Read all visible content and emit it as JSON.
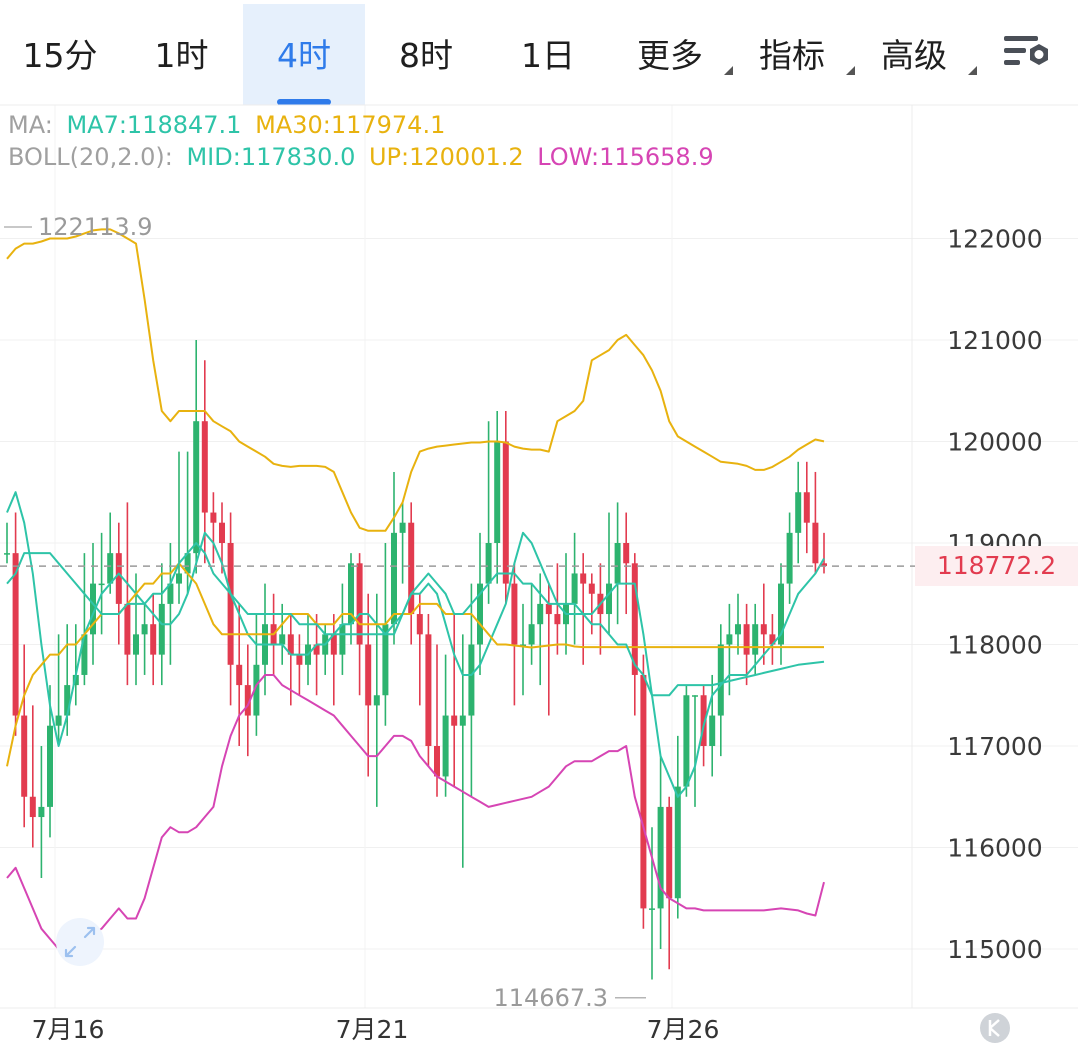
{
  "tabs": [
    {
      "label": "15分",
      "active": false,
      "dropdown": false
    },
    {
      "label": "1时",
      "active": false,
      "dropdown": false
    },
    {
      "label": "4时",
      "active": true,
      "dropdown": false
    },
    {
      "label": "8时",
      "active": false,
      "dropdown": false
    },
    {
      "label": "1日",
      "active": false,
      "dropdown": false
    },
    {
      "label": "更多",
      "active": false,
      "dropdown": true
    },
    {
      "label": "指标",
      "active": false,
      "dropdown": true
    },
    {
      "label": "高级",
      "active": false,
      "dropdown": true
    }
  ],
  "settings_icon": "chart-settings-icon",
  "legend": {
    "ma_prefix": "MA:",
    "ma7": "MA7:118847.1",
    "ma30": "MA30:117974.1",
    "boll_prefix": "BOLL(20,2.0):",
    "mid": "MID:117830.0",
    "up": "UP:120001.2",
    "low": "LOW:115658.9"
  },
  "current_price_label": "118772.2",
  "colors": {
    "up": "#2db36f",
    "down": "#e23b4f",
    "ma7": "#2ec4a8",
    "ma30": "#e8b20f",
    "boll_up": "#e8b20f",
    "boll_mid": "#2ec4a8",
    "boll_low": "#d645b4",
    "active_tab": "#2f7bea"
  },
  "chart_data": {
    "type": "candlestick",
    "interval": "4时",
    "y_ticks": [
      115000,
      116000,
      117000,
      118000,
      119000,
      120000,
      121000,
      122000
    ],
    "x_ticks": [
      "7月16",
      "7月21",
      "7月26"
    ],
    "max_label": "122113.9",
    "min_label": "114667.3",
    "current_price": 118772.2,
    "grid": true,
    "candles": [
      [
        118900,
        118900,
        119200,
        118800
      ],
      [
        118900,
        117300,
        119300,
        117100
      ],
      [
        117300,
        116500,
        118000,
        116200
      ],
      [
        116500,
        116300,
        117400,
        116000
      ],
      [
        116300,
        116400,
        117000,
        115700
      ],
      [
        116400,
        117200,
        117600,
        116100
      ],
      [
        117200,
        117300,
        118100,
        117000
      ],
      [
        117300,
        117600,
        118200,
        117100
      ],
      [
        117600,
        117700,
        118200,
        117400
      ],
      [
        117700,
        118100,
        118900,
        117600
      ],
      [
        118100,
        118600,
        119000,
        117800
      ],
      [
        118600,
        118600,
        119100,
        118100
      ],
      [
        118600,
        118900,
        119300,
        118500
      ],
      [
        118900,
        118400,
        119200,
        118000
      ],
      [
        118400,
        117900,
        119400,
        117600
      ],
      [
        117900,
        118100,
        118700,
        117600
      ],
      [
        118100,
        118200,
        118400,
        117700
      ],
      [
        118200,
        117900,
        118500,
        117600
      ],
      [
        117900,
        118400,
        118800,
        117600
      ],
      [
        118400,
        118600,
        119000,
        117800
      ],
      [
        118600,
        118700,
        119900,
        118400
      ],
      [
        118700,
        118900,
        119900,
        118500
      ],
      [
        118900,
        120200,
        121000,
        118700
      ],
      [
        120200,
        119300,
        120800,
        118800
      ],
      [
        119300,
        119200,
        119500,
        118800
      ],
      [
        119200,
        119000,
        119400,
        118700
      ],
      [
        119000,
        117800,
        119300,
        117400
      ],
      [
        117800,
        117600,
        118400,
        117000
      ],
      [
        117600,
        117300,
        118000,
        116900
      ],
      [
        117300,
        117800,
        118300,
        117100
      ],
      [
        117800,
        118200,
        118600,
        117500
      ],
      [
        118200,
        118000,
        118500,
        117700
      ],
      [
        118000,
        118100,
        118400,
        117800
      ],
      [
        118100,
        117900,
        118300,
        117400
      ],
      [
        117900,
        117800,
        118100,
        117500
      ],
      [
        117800,
        118000,
        118300,
        117600
      ],
      [
        118000,
        117900,
        118300,
        117500
      ],
      [
        117900,
        118100,
        118200,
        117700
      ],
      [
        118100,
        117900,
        118300,
        117400
      ],
      [
        117900,
        118200,
        118600,
        117700
      ],
      [
        118200,
        118800,
        118900,
        118000
      ],
      [
        118800,
        118000,
        118900,
        117500
      ],
      [
        118000,
        117400,
        118500,
        116700
      ],
      [
        117400,
        117500,
        118500,
        116400
      ],
      [
        117500,
        118200,
        119000,
        117200
      ],
      [
        118200,
        119100,
        119700,
        118000
      ],
      [
        119100,
        119200,
        119400,
        118600
      ],
      [
        119200,
        118300,
        119400,
        118000
      ],
      [
        118300,
        118100,
        118500,
        117400
      ],
      [
        118100,
        117000,
        118300,
        116800
      ],
      [
        117000,
        116700,
        118000,
        116500
      ],
      [
        116700,
        117300,
        117900,
        116500
      ],
      [
        117300,
        117200,
        118300,
        116600
      ],
      [
        117200,
        117300,
        118100,
        115800
      ],
      [
        117300,
        118000,
        118600,
        116500
      ],
      [
        118000,
        118600,
        119100,
        117700
      ],
      [
        118600,
        119000,
        120200,
        118400
      ],
      [
        119000,
        120000,
        120300,
        118600
      ],
      [
        120000,
        118600,
        120300,
        118400
      ],
      [
        118600,
        118000,
        118800,
        117400
      ],
      [
        118000,
        118000,
        118400,
        117500
      ],
      [
        118000,
        118200,
        118600,
        117800
      ],
      [
        118200,
        118400,
        118700,
        117600
      ],
      [
        118400,
        118300,
        118600,
        117300
      ],
      [
        118300,
        118200,
        118800,
        117900
      ],
      [
        118200,
        118400,
        118900,
        117900
      ],
      [
        118400,
        118700,
        119100,
        118000
      ],
      [
        118700,
        118600,
        118900,
        117800
      ],
      [
        118600,
        118500,
        118700,
        118100
      ],
      [
        118500,
        118300,
        118800,
        117900
      ],
      [
        118300,
        118600,
        119300,
        118100
      ],
      [
        118600,
        119000,
        119400,
        118200
      ],
      [
        119000,
        118800,
        119300,
        118300
      ],
      [
        118800,
        117700,
        118900,
        117300
      ],
      [
        117700,
        115400,
        117900,
        115200
      ],
      [
        115400,
        115400,
        116200,
        114700
      ],
      [
        115400,
        116400,
        116900,
        115000
      ],
      [
        116400,
        115500,
        116500,
        114800
      ],
      [
        115500,
        116600,
        117100,
        115300
      ],
      [
        116600,
        117500,
        117600,
        116500
      ],
      [
        117500,
        117500,
        117500,
        116400
      ],
      [
        117500,
        117000,
        117600,
        116800
      ],
      [
        117000,
        117300,
        117700,
        116700
      ],
      [
        117300,
        118000,
        118200,
        116900
      ],
      [
        118000,
        118100,
        118400,
        117500
      ],
      [
        118100,
        118200,
        118500,
        117900
      ],
      [
        118200,
        117900,
        118400,
        117600
      ],
      [
        117900,
        118200,
        118400,
        117700
      ],
      [
        118200,
        118100,
        118600,
        117800
      ],
      [
        118100,
        118000,
        118300,
        117800
      ],
      [
        118000,
        118600,
        118800,
        117800
      ],
      [
        118600,
        119100,
        119300,
        118400
      ],
      [
        119100,
        119500,
        119800,
        118800
      ],
      [
        119500,
        119200,
        119800,
        118900
      ],
      [
        119200,
        118800,
        119700,
        118700
      ],
      [
        118800,
        118772.2,
        119100,
        118700
      ]
    ],
    "series": [
      {
        "name": "MA7",
        "values": [
          119300,
          119500,
          119200,
          118700,
          118000,
          117400,
          117000,
          117300,
          117700,
          118100,
          118300,
          118500,
          118600,
          118700,
          118600,
          118500,
          118400,
          118300,
          118200,
          118200,
          118300,
          118500,
          118800,
          119100,
          119000,
          118800,
          118500,
          118300,
          118100,
          118000,
          118000,
          118000,
          118000,
          117900,
          117900,
          117900,
          118000,
          118000,
          118100,
          118200,
          118200,
          118300,
          118300,
          118200,
          118100,
          118100,
          118300,
          118500,
          118500,
          118600,
          118500,
          118200,
          117900,
          117700,
          117700,
          117800,
          118000,
          118200,
          118400,
          118800,
          119100,
          119000,
          118800,
          118600,
          118400,
          118300,
          118300,
          118300,
          118300,
          118400,
          118500,
          118600,
          118600,
          118600,
          118100,
          117500,
          116900,
          116700,
          116500,
          116600,
          116800,
          117200,
          117500,
          117600,
          117700,
          117700,
          117700,
          117800,
          117900,
          118000,
          118100,
          118300,
          118500,
          118600,
          118700,
          118847.1
        ]
      },
      {
        "name": "MA30",
        "values": [
          116800,
          117200,
          117500,
          117700,
          117800,
          117900,
          117900,
          118000,
          118000,
          118100,
          118200,
          118300,
          118300,
          118300,
          118400,
          118500,
          118600,
          118600,
          118700,
          118700,
          118800,
          118700,
          118600,
          118400,
          118200,
          118100,
          118100,
          118100,
          118100,
          118100,
          118100,
          118100,
          118200,
          118300,
          118300,
          118300,
          118200,
          118200,
          118200,
          118300,
          118300,
          118200,
          118200,
          118200,
          118200,
          118300,
          118300,
          118300,
          118400,
          118400,
          118400,
          118300,
          118300,
          118300,
          118300,
          118200,
          118100,
          118000,
          118000,
          117990,
          117980,
          117970,
          117980,
          117990,
          118000,
          118000,
          117980,
          117974.1,
          117974.1,
          117974.1,
          117974.1,
          117974.1,
          117974.1,
          117974.1,
          117974.1,
          117974.1,
          117974.1,
          117974.1,
          117974.1,
          117974.1,
          117974.1,
          117974.1,
          117974.1,
          117974.1,
          117974.1,
          117974.1,
          117974.1,
          117974.1,
          117974.1,
          117974.1,
          117974.1,
          117974.1,
          117974.1,
          117974.1,
          117974.1,
          117974.1
        ]
      },
      {
        "name": "UP",
        "values": [
          121800,
          121900,
          121950,
          121950,
          121970,
          122000,
          122000,
          122000,
          122020,
          122050,
          122080,
          122090,
          122090,
          122050,
          122000,
          121950,
          121400,
          120800,
          120300,
          120200,
          120300,
          120300,
          120300,
          120300,
          120200,
          120150,
          120100,
          120000,
          119950,
          119900,
          119850,
          119780,
          119760,
          119750,
          119760,
          119760,
          119760,
          119750,
          119700,
          119500,
          119300,
          119150,
          119120,
          119120,
          119120,
          119250,
          119400,
          119700,
          119900,
          119930,
          119950,
          119960,
          119970,
          119980,
          119990,
          119990,
          120000,
          120000,
          119990,
          119950,
          119930,
          119920,
          119920,
          119900,
          120200,
          120250,
          120300,
          120400,
          120800,
          120850,
          120900,
          121000,
          121050,
          120950,
          120850,
          120700,
          120500,
          120200,
          120050,
          120000,
          119950,
          119900,
          119850,
          119800,
          119790,
          119780,
          119760,
          119720,
          119720,
          119750,
          119800,
          119850,
          119920,
          119970,
          120020,
          120001.2
        ]
      },
      {
        "name": "MID",
        "values": [
          118600,
          118700,
          118900,
          118900,
          118900,
          118900,
          118800,
          118700,
          118600,
          118500,
          118400,
          118300,
          118300,
          118300,
          118400,
          118400,
          118400,
          118500,
          118500,
          118600,
          118800,
          118900,
          119000,
          118900,
          118700,
          118600,
          118500,
          118400,
          118300,
          118300,
          118300,
          118300,
          118300,
          118300,
          118200,
          118200,
          118200,
          118100,
          118100,
          118100,
          118100,
          118100,
          118100,
          118100,
          118100,
          118200,
          118300,
          118500,
          118600,
          118700,
          118600,
          118500,
          118300,
          118300,
          118400,
          118500,
          118600,
          118700,
          118700,
          118700,
          118600,
          118600,
          118500,
          118400,
          118400,
          118400,
          118400,
          118300,
          118200,
          118200,
          118100,
          118000,
          118000,
          117800,
          117700,
          117500,
          117500,
          117500,
          117600,
          117600,
          117600,
          117600,
          117600,
          117620,
          117640,
          117660,
          117680,
          117700,
          117720,
          117740,
          117760,
          117780,
          117800,
          117810,
          117820,
          117830.0
        ]
      },
      {
        "name": "LOW",
        "values": [
          115700,
          115800,
          115600,
          115400,
          115200,
          115100,
          115000,
          115000,
          115050,
          115100,
          115150,
          115200,
          115300,
          115400,
          115300,
          115300,
          115500,
          115800,
          116100,
          116200,
          116150,
          116150,
          116200,
          116300,
          116400,
          116800,
          117100,
          117300,
          117400,
          117600,
          117700,
          117700,
          117600,
          117550,
          117500,
          117450,
          117400,
          117350,
          117300,
          117200,
          117100,
          117000,
          116900,
          116900,
          117000,
          117100,
          117100,
          117050,
          116900,
          116800,
          116700,
          116650,
          116600,
          116550,
          116500,
          116450,
          116400,
          116420,
          116440,
          116460,
          116480,
          116500,
          116550,
          116600,
          116700,
          116800,
          116850,
          116850,
          116850,
          116900,
          116950,
          116950,
          117000,
          116500,
          116200,
          115900,
          115600,
          115500,
          115450,
          115400,
          115400,
          115380,
          115380,
          115380,
          115380,
          115380,
          115380,
          115380,
          115380,
          115390,
          115400,
          115390,
          115380,
          115350,
          115330,
          115658.9
        ]
      }
    ]
  }
}
